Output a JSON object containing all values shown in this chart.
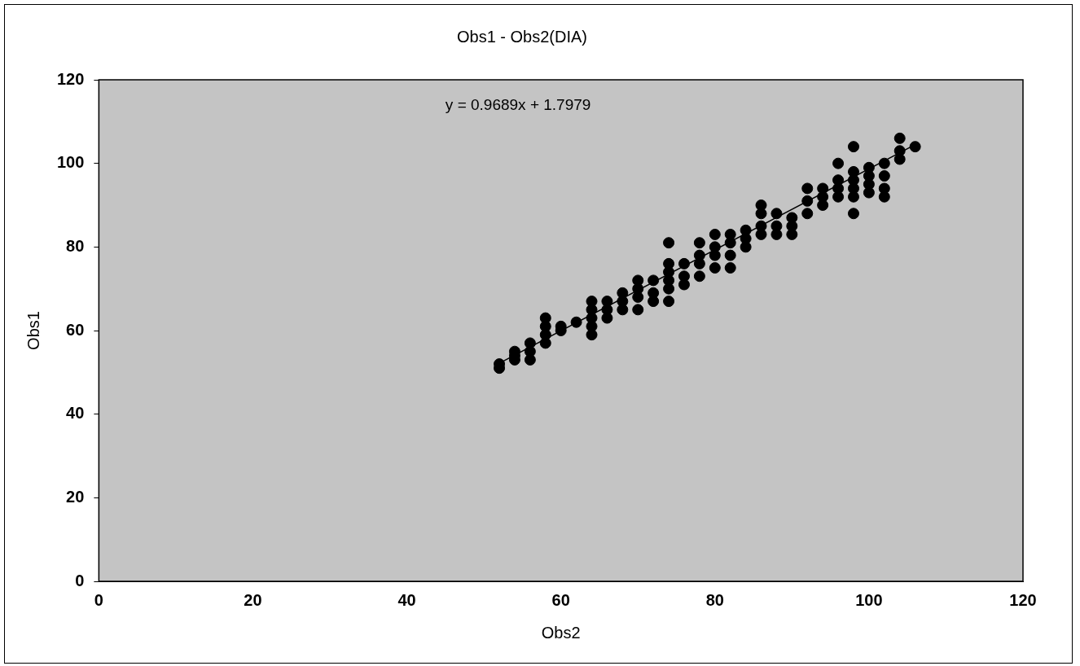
{
  "chart_data": {
    "type": "scatter",
    "title": "Obs1 - Obs2(DIA)",
    "xlabel": "Obs2",
    "ylabel": "Obs1",
    "annotations": [
      "y = 0.9689x + 1.7979"
    ],
    "xlim": [
      0,
      120
    ],
    "xticks": [
      0,
      20,
      40,
      60,
      80,
      100,
      120
    ],
    "ylim": [
      0,
      120
    ],
    "yticks": [
      0,
      20,
      40,
      60,
      80,
      100,
      120
    ],
    "grid": false,
    "legend": false,
    "marker": "circle",
    "series": [
      {
        "color": "#000000",
        "x": [
          52,
          52,
          54,
          54,
          54,
          56,
          56,
          56,
          58,
          58,
          58,
          58,
          60,
          60,
          62,
          64,
          64,
          64,
          64,
          64,
          66,
          66,
          66,
          68,
          68,
          68,
          70,
          70,
          70,
          70,
          72,
          72,
          72,
          74,
          74,
          74,
          74,
          74,
          74,
          76,
          76,
          76,
          78,
          78,
          78,
          78,
          80,
          80,
          80,
          80,
          82,
          82,
          82,
          82,
          84,
          84,
          84,
          86,
          86,
          86,
          86,
          88,
          88,
          88,
          90,
          90,
          90,
          92,
          92,
          92,
          94,
          94,
          94,
          96,
          96,
          96,
          96,
          98,
          98,
          98,
          98,
          98,
          98,
          100,
          100,
          100,
          100,
          102,
          102,
          102,
          102,
          104,
          104,
          104,
          106
        ],
        "values": [
          51,
          52,
          53,
          54,
          55,
          53,
          55,
          57,
          57,
          59,
          61,
          63,
          60,
          61,
          62,
          59,
          61,
          63,
          65,
          67,
          63,
          65,
          67,
          65,
          67,
          69,
          65,
          68,
          70,
          72,
          67,
          69,
          72,
          67,
          70,
          72,
          74,
          76,
          81,
          71,
          73,
          76,
          73,
          76,
          78,
          81,
          75,
          78,
          80,
          83,
          75,
          78,
          81,
          83,
          80,
          82,
          84,
          83,
          85,
          88,
          90,
          83,
          85,
          88,
          83,
          85,
          87,
          88,
          91,
          94,
          90,
          92,
          94,
          92,
          94,
          96,
          100,
          88,
          92,
          94,
          96,
          98,
          104,
          93,
          95,
          97,
          99,
          92,
          94,
          97,
          100,
          101,
          103,
          106,
          104
        ]
      },
      {
        "type": "line",
        "color": "#000000",
        "marker": "none",
        "x": [
          52,
          106
        ],
        "values": [
          52.2,
          104.5
        ]
      }
    ]
  }
}
